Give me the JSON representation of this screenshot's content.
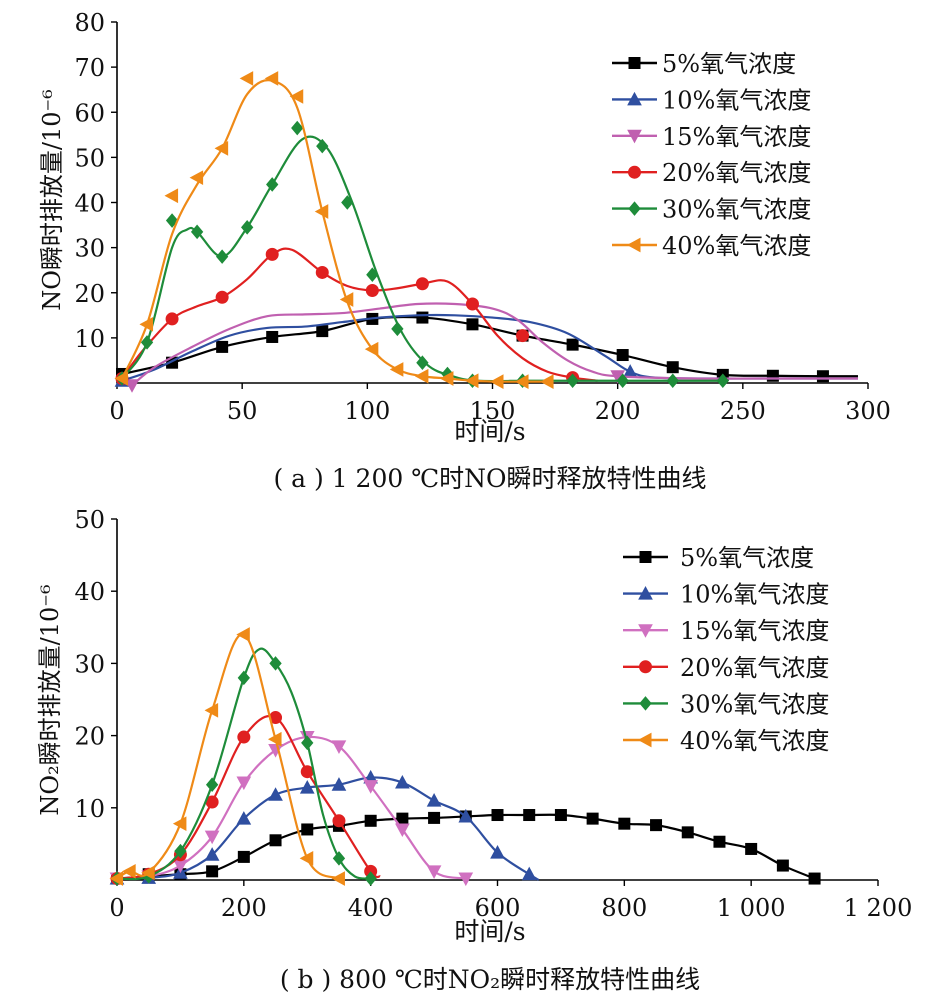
{
  "panels": [
    {
      "caption": "( a ) 1 200 ℃时NO瞬时释放特性曲线",
      "xlabel": "时间/s",
      "ylabel": "NO瞬时排放量/10⁻⁶",
      "xticks": [
        "0",
        "50",
        "100",
        "150",
        "200",
        "250",
        "300"
      ],
      "yticks": [
        "10",
        "20",
        "30",
        "40",
        "50",
        "60",
        "70",
        "80"
      ],
      "legend": [
        "5%氧气浓度",
        "10%氧气浓度",
        "15%氧气浓度",
        "20%氧气浓度",
        "30%氧气浓度",
        "40%氧气浓度"
      ]
    },
    {
      "caption": "( b ) 800 ℃时NO₂瞬时释放特性曲线",
      "xlabel": "时间/s",
      "ylabel": "NO₂瞬时排放量/10⁻⁶",
      "xticks": [
        "0",
        "200",
        "400",
        "600",
        "800",
        "1 000",
        "1 200"
      ],
      "yticks": [
        "10",
        "20",
        "30",
        "40",
        "50"
      ],
      "legend": [
        "5%氧气浓度",
        "10%氧气浓度",
        "15%氧气浓度",
        "20%氧气浓度",
        "30%氧气浓度",
        "40%氧气浓度"
      ]
    }
  ],
  "chart_data": [
    {
      "type": "line",
      "title": "( a ) 1 200 ℃时NO瞬时释放特性曲线",
      "xlabel": "时间/s",
      "ylabel": "NO瞬时排放量/10⁻⁶",
      "xlim": [
        0,
        300
      ],
      "ylim": [
        0,
        80
      ],
      "grid": false,
      "legend_position": "top-right",
      "series": [
        {
          "name": "5%氧气浓度",
          "color": "#000000",
          "marker": "square",
          "x": [
            2,
            22,
            42,
            62,
            82,
            102,
            122,
            142,
            162,
            182,
            202,
            222,
            242,
            262,
            282,
            296
          ],
          "y": [
            2,
            4.5,
            8,
            10.2,
            11.5,
            14.2,
            14.5,
            13,
            10.5,
            8.5,
            6.2,
            3.5,
            1.8,
            1.6,
            1.5,
            1.5
          ],
          "points_x": [
            2,
            22,
            42,
            62,
            82,
            102,
            122,
            142,
            162,
            182,
            202,
            222,
            242,
            262,
            282
          ],
          "points_y": [
            2,
            4.5,
            8,
            10.2,
            11.5,
            14.2,
            14.5,
            13,
            10.5,
            8.5,
            6.2,
            3.5,
            1.8,
            1.6,
            1.5
          ]
        },
        {
          "name": "10%氧气浓度",
          "color": "#2f4fa0",
          "marker": "triangle-up",
          "x": [
            2,
            15,
            30,
            45,
            60,
            75,
            90,
            105,
            120,
            135,
            150,
            165,
            180,
            195,
            205,
            215,
            240,
            265,
            296
          ],
          "y": [
            0.5,
            3,
            7,
            10.5,
            12.2,
            12.5,
            13.5,
            14.5,
            15,
            15,
            14.5,
            13.5,
            11,
            6,
            2.5,
            1.2,
            1,
            1,
            1
          ],
          "points_x": [
            2,
            205
          ],
          "points_y": [
            0.5,
            2.5
          ]
        },
        {
          "name": "15%氧气浓度",
          "color": "#c060b0",
          "marker": "triangle-down",
          "x": [
            6,
            15,
            30,
            45,
            60,
            75,
            90,
            105,
            120,
            135,
            150,
            160,
            170,
            180,
            190,
            200,
            230,
            260,
            296
          ],
          "y": [
            -0.5,
            3.5,
            8,
            12,
            14.8,
            15.2,
            15.5,
            16.5,
            17.5,
            17.5,
            16.5,
            14,
            9,
            5,
            2.5,
            1.5,
            1,
            1,
            1
          ],
          "points_x": [
            6,
            200
          ],
          "points_y": [
            -0.5,
            1.5
          ]
        },
        {
          "name": "20%氧气浓度",
          "color": "#e02020",
          "marker": "circle",
          "x": [
            2,
            10,
            22,
            32,
            42,
            52,
            62,
            70,
            82,
            92,
            102,
            112,
            122,
            132,
            142,
            152,
            162,
            172,
            182,
            192
          ],
          "y": [
            1,
            7,
            14.2,
            17,
            19,
            23,
            28.5,
            29.5,
            24.5,
            21.5,
            20.5,
            21,
            22,
            22.5,
            17.5,
            10.5,
            5.5,
            2.5,
            1.2,
            0.5
          ],
          "points_x": [
            2,
            22,
            42,
            62,
            82,
            102,
            122,
            142,
            162,
            182
          ],
          "points_y": [
            1,
            14.2,
            19,
            28.5,
            24.5,
            20.5,
            22,
            17.5,
            10.5,
            1.2
          ]
        },
        {
          "name": "30%氧气浓度",
          "color": "#1e8c3a",
          "marker": "diamond",
          "x": [
            2,
            12,
            22,
            28,
            32,
            42,
            52,
            62,
            74,
            84,
            94,
            104,
            114,
            124,
            134,
            144,
            164,
            184,
            204,
            224,
            242
          ],
          "y": [
            1,
            9,
            30,
            34,
            33.5,
            28,
            34.5,
            44,
            54,
            52,
            40,
            24,
            11,
            4,
            1.5,
            0.5,
            0.5,
            0.5,
            0.5,
            0.5,
            0.5
          ],
          "points_x": [
            2,
            12,
            22,
            32,
            42,
            52,
            62,
            72,
            82,
            92,
            102,
            112,
            122,
            132,
            142,
            162,
            182,
            202,
            222,
            242
          ],
          "points_y": [
            1,
            9,
            36,
            33.5,
            28,
            34.5,
            44,
            56.5,
            52.5,
            40,
            24,
            12,
            4.5,
            2,
            0.5,
            0.5,
            0.5,
            0.5,
            0.5,
            0.5
          ]
        },
        {
          "name": "40%氧气浓度",
          "color": "#ef8a17",
          "marker": "triangle-left",
          "x": [
            2,
            12,
            22,
            32,
            42,
            52,
            62,
            72,
            82,
            92,
            102,
            112,
            122,
            132,
            142,
            152,
            162,
            172
          ],
          "y": [
            1,
            13,
            33,
            44,
            52,
            64,
            67,
            61,
            38,
            18,
            7.5,
            3,
            1.5,
            1,
            0.5,
            0.3,
            0.3,
            0.3
          ],
          "points_x": [
            2,
            12,
            22,
            32,
            42,
            52,
            62,
            72,
            82,
            92,
            102,
            112,
            122,
            132,
            142,
            152,
            162,
            172
          ],
          "points_y": [
            1,
            13,
            41.5,
            45.5,
            52,
            67.5,
            67.5,
            63.5,
            38,
            18.5,
            7.5,
            3,
            1.5,
            1,
            0.5,
            0.3,
            0.3,
            0.3
          ]
        }
      ]
    },
    {
      "type": "line",
      "title": "( b ) 800 ℃时NO₂瞬时释放特性曲线",
      "xlabel": "时间/s",
      "ylabel": "NO₂瞬时排放量/10⁻⁶",
      "xlim": [
        0,
        1200
      ],
      "ylim": [
        0,
        50
      ],
      "grid": false,
      "legend_position": "top-right",
      "series": [
        {
          "name": "5%氧气浓度",
          "color": "#000000",
          "marker": "square",
          "x": [
            0,
            50,
            100,
            150,
            200,
            250,
            300,
            350,
            400,
            450,
            500,
            550,
            600,
            650,
            700,
            750,
            800,
            850,
            900,
            950,
            1000,
            1050,
            1100
          ],
          "y": [
            0.2,
            0.5,
            0.8,
            1.2,
            3.2,
            5.5,
            7,
            7.5,
            8.2,
            8.5,
            8.6,
            8.8,
            9,
            9,
            9,
            8.5,
            7.8,
            7.6,
            6.6,
            5.3,
            4.3,
            2,
            0.2
          ],
          "points_x": [
            0,
            50,
            100,
            150,
            200,
            250,
            300,
            350,
            400,
            450,
            500,
            550,
            600,
            650,
            700,
            750,
            800,
            850,
            900,
            950,
            1000,
            1050,
            1100
          ],
          "points_y": [
            0.2,
            0.8,
            0.8,
            1.2,
            3.2,
            5.5,
            7,
            7.5,
            8.2,
            8.5,
            8.6,
            8.8,
            9,
            9,
            9,
            8.5,
            7.8,
            7.6,
            6.6,
            5.3,
            4.3,
            2,
            0.2
          ]
        },
        {
          "name": "10%氧气浓度",
          "color": "#2f4fa0",
          "marker": "triangle-up",
          "x": [
            0,
            50,
            100,
            150,
            200,
            250,
            300,
            350,
            400,
            450,
            500,
            550,
            600,
            650,
            665
          ],
          "y": [
            0.2,
            0.3,
            1,
            3.5,
            8.5,
            11.8,
            12.8,
            13.2,
            14.2,
            13.5,
            11,
            8.8,
            3.8,
            0.8,
            0
          ],
          "points_x": [
            0,
            50,
            100,
            150,
            200,
            250,
            300,
            350,
            400,
            450,
            500,
            550,
            600,
            650
          ],
          "points_y": [
            0.2,
            0.3,
            1,
            3.5,
            8.5,
            11.8,
            12.8,
            13.2,
            14.2,
            13.5,
            11,
            8.8,
            3.8,
            0.8
          ]
        },
        {
          "name": "15%氧气浓度",
          "color": "#d070c0",
          "marker": "triangle-down",
          "x": [
            0,
            50,
            100,
            150,
            200,
            250,
            300,
            350,
            400,
            450,
            500,
            550
          ],
          "y": [
            0.2,
            0.5,
            2,
            6,
            13.5,
            18,
            19.8,
            18.5,
            13,
            7,
            1.2,
            0.2
          ],
          "points_x": [
            0,
            50,
            100,
            150,
            200,
            250,
            300,
            350,
            400,
            450,
            500,
            550
          ],
          "points_y": [
            0.2,
            0.5,
            2,
            6,
            13.5,
            18,
            19.8,
            18.5,
            13,
            7,
            1.2,
            0.2
          ]
        },
        {
          "name": "20%氧气浓度",
          "color": "#e02020",
          "marker": "circle",
          "x": [
            0,
            50,
            100,
            150,
            200,
            250,
            300,
            350,
            400,
            415
          ],
          "y": [
            0.2,
            0.8,
            3.5,
            10.8,
            19.8,
            22.5,
            15,
            8.2,
            1.2,
            0.5
          ],
          "points_x": [
            0,
            50,
            100,
            150,
            200,
            250,
            300,
            350,
            400
          ],
          "points_y": [
            0.2,
            0.8,
            3.5,
            10.8,
            19.8,
            22.5,
            15,
            8.2,
            1.2
          ]
        },
        {
          "name": "30%氧气浓度",
          "color": "#1e8c3a",
          "marker": "diamond",
          "x": [
            0,
            50,
            100,
            150,
            200,
            225,
            250,
            275,
            300,
            325,
            350,
            375,
            400
          ],
          "y": [
            0.2,
            0.5,
            4,
            13.2,
            28,
            32,
            30,
            26,
            19,
            9,
            3,
            0.5,
            0.2
          ],
          "points_x": [
            0,
            50,
            100,
            150,
            200,
            250,
            300,
            350,
            400
          ],
          "points_y": [
            0.2,
            0.5,
            4,
            13.2,
            28,
            30,
            19,
            3,
            0.2
          ]
        },
        {
          "name": "40%氧气浓度",
          "color": "#ef8a17",
          "marker": "triangle-left",
          "x": [
            0,
            20,
            50,
            100,
            150,
            200,
            250,
            300,
            350
          ],
          "y": [
            0.2,
            1.2,
            1,
            7.8,
            23.5,
            34,
            19.5,
            3,
            0.2
          ],
          "points_x": [
            0,
            20,
            50,
            100,
            150,
            200,
            250,
            300,
            350
          ],
          "points_y": [
            0.2,
            1.2,
            1,
            7.8,
            23.5,
            34,
            19.5,
            3,
            0.2
          ]
        }
      ]
    }
  ]
}
